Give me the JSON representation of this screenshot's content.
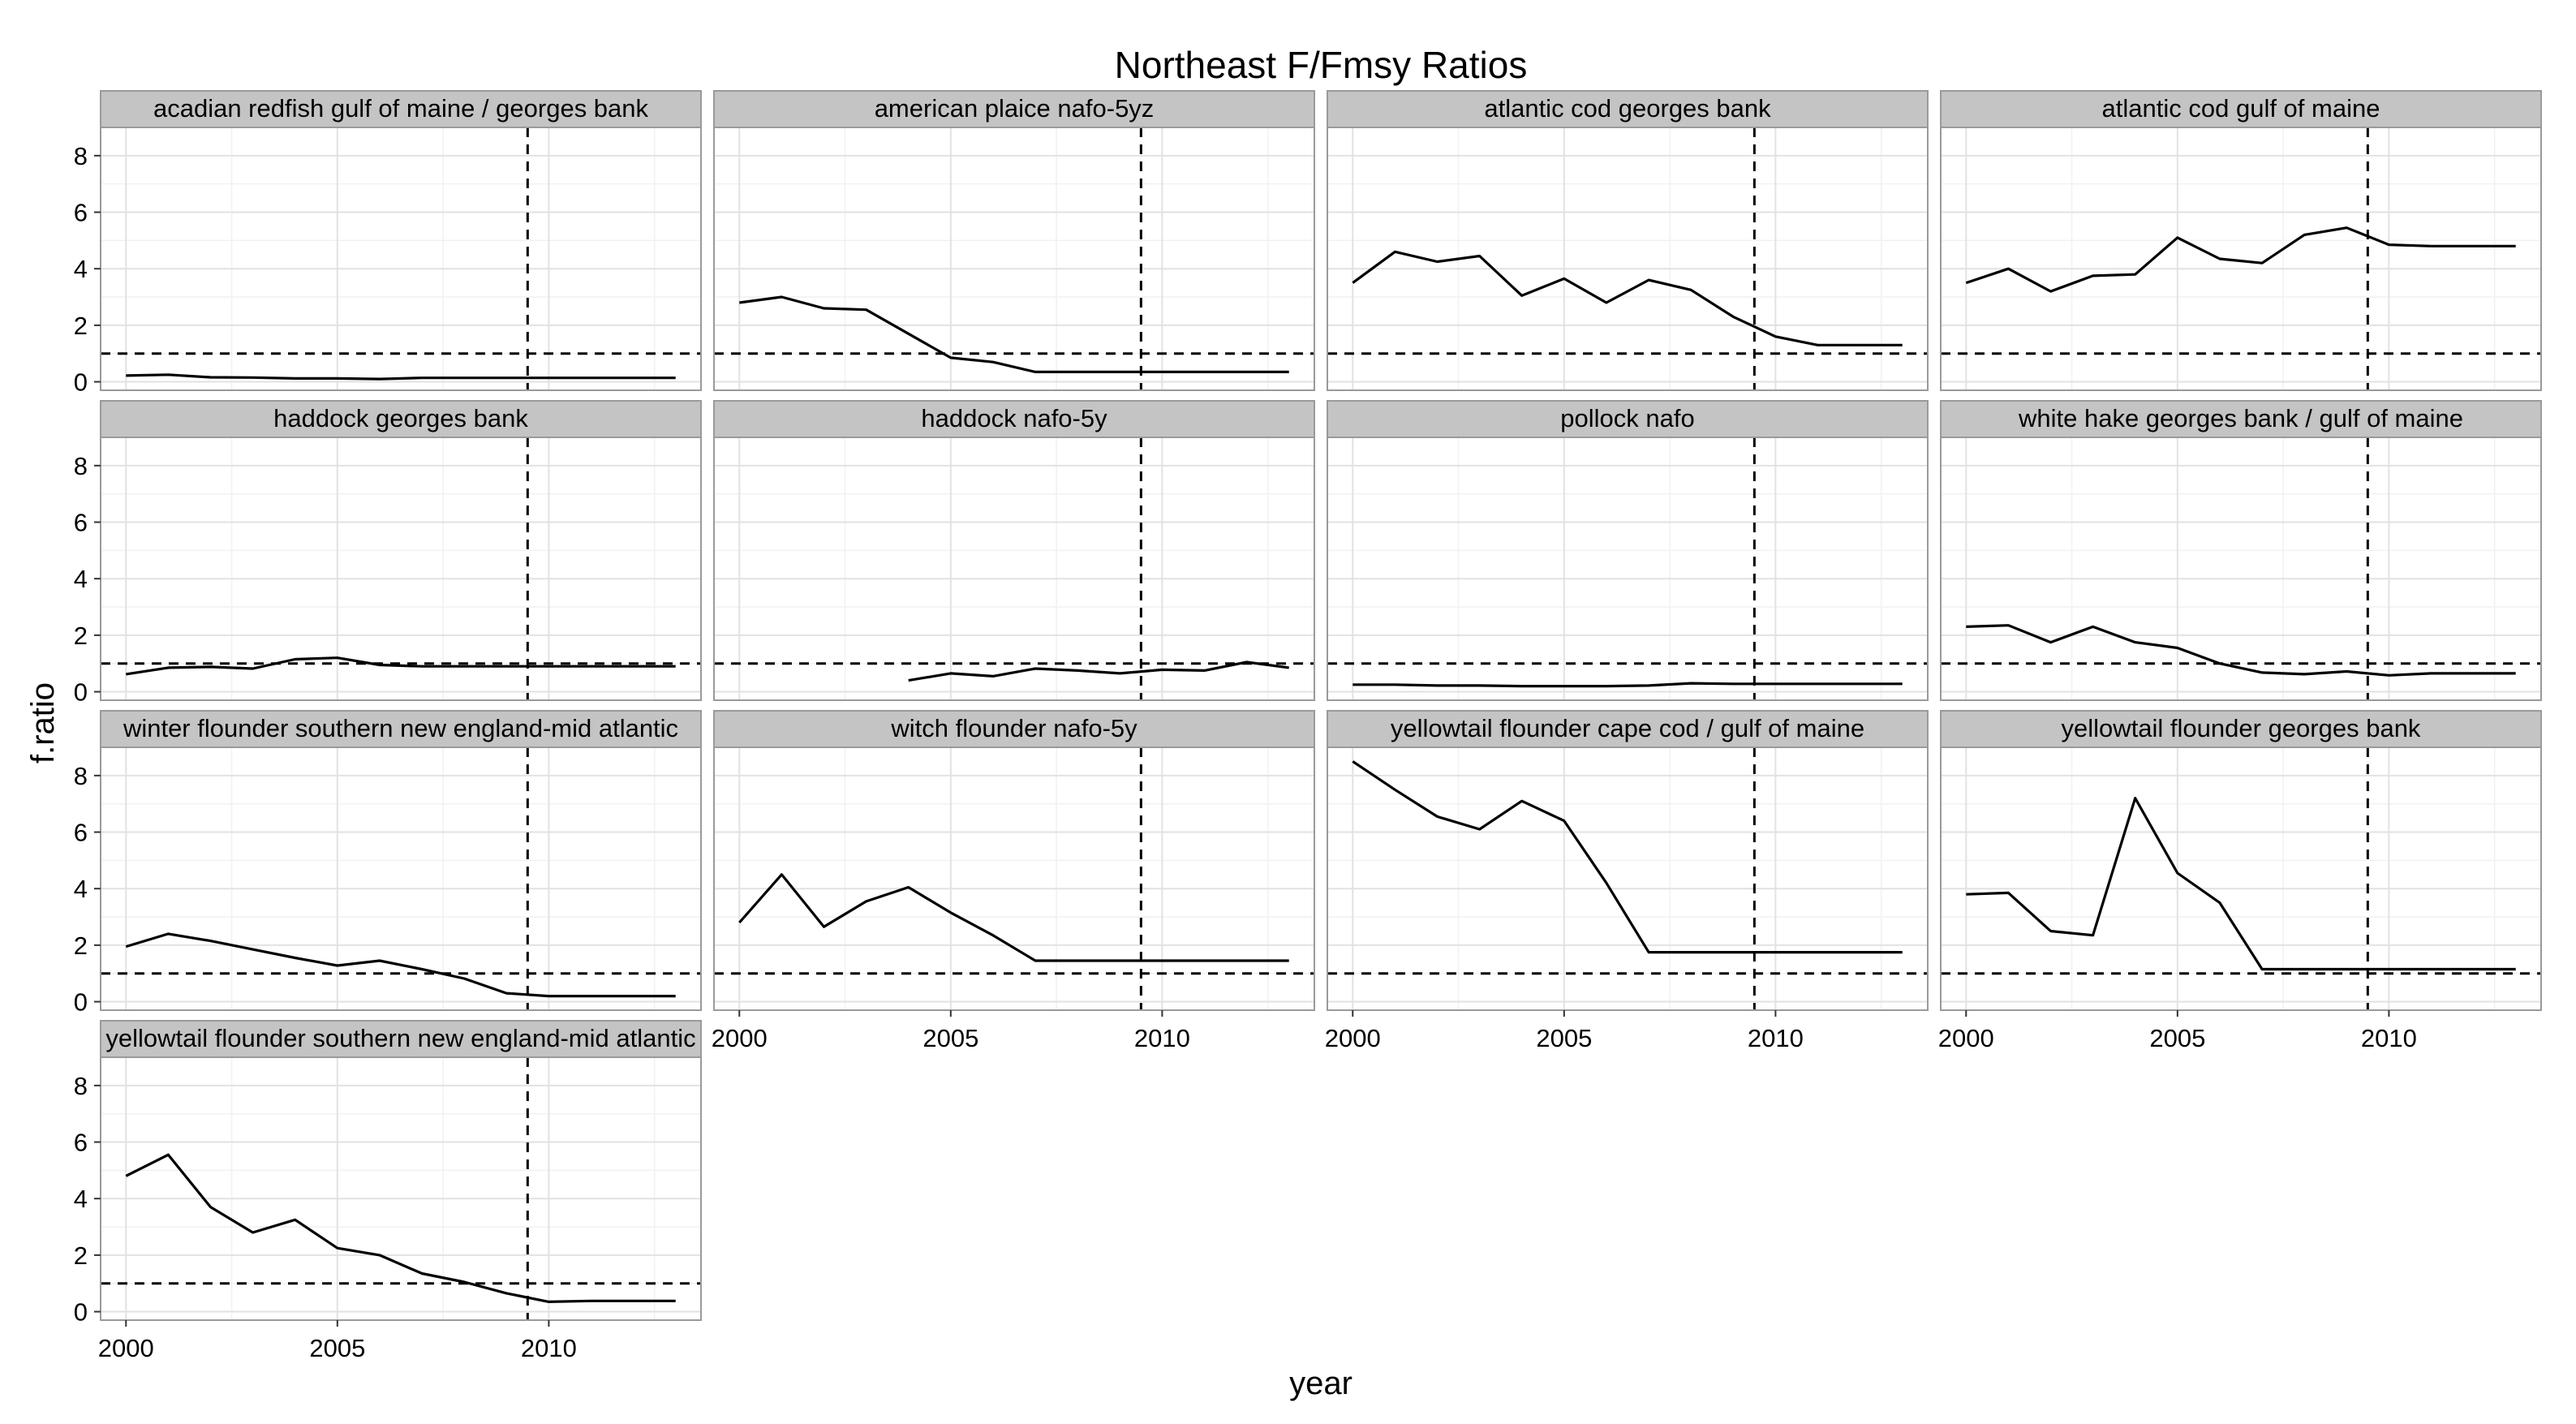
{
  "chart_data": {
    "type": "line",
    "title": "Northeast F/Fmsy Ratios",
    "xlabel": "year",
    "ylabel": "f.ratio",
    "xlim": [
      1999.4,
      2013.6
    ],
    "ylim": [
      -0.3,
      9.0
    ],
    "x_ticks": [
      2000,
      2005,
      2010
    ],
    "x_tick_labels": [
      "2000",
      "2005",
      "2010"
    ],
    "y_ticks": [
      0,
      2,
      4,
      6,
      8
    ],
    "y_tick_labels": [
      "0",
      "2",
      "4",
      "6",
      "8"
    ],
    "grid": true,
    "reference_lines": {
      "horizontal_y": 1,
      "vertical_x": 2009.5,
      "style": "dashed"
    },
    "panels": [
      {
        "title": "acadian redfish gulf of maine / georges bank",
        "x": [
          2000,
          2001,
          2002,
          2003,
          2004,
          2005,
          2006,
          2007,
          2008,
          2009,
          2010,
          2011,
          2012,
          2013
        ],
        "y": [
          0.22,
          0.25,
          0.16,
          0.15,
          0.12,
          0.12,
          0.1,
          0.14,
          0.14,
          0.14,
          0.14,
          0.14,
          0.14,
          0.14
        ]
      },
      {
        "title": "american plaice nafo-5yz",
        "x": [
          2000,
          2001,
          2002,
          2003,
          2004,
          2005,
          2006,
          2007,
          2008,
          2009,
          2010,
          2011,
          2012,
          2013
        ],
        "y": [
          2.8,
          3.0,
          2.6,
          2.55,
          1.7,
          0.85,
          0.7,
          0.35,
          0.35,
          0.35,
          0.35,
          0.35,
          0.35,
          0.35
        ]
      },
      {
        "title": "atlantic cod georges bank",
        "x": [
          2000,
          2001,
          2002,
          2003,
          2004,
          2005,
          2006,
          2007,
          2008,
          2009,
          2010,
          2011,
          2012,
          2013
        ],
        "y": [
          3.5,
          4.6,
          4.25,
          4.45,
          3.05,
          3.65,
          2.8,
          3.6,
          3.25,
          2.3,
          1.6,
          1.3,
          1.3,
          1.3
        ]
      },
      {
        "title": "atlantic cod gulf of maine",
        "x": [
          2000,
          2001,
          2002,
          2003,
          2004,
          2005,
          2006,
          2007,
          2008,
          2009,
          2010,
          2011,
          2012,
          2013
        ],
        "y": [
          3.5,
          4.0,
          3.2,
          3.75,
          3.8,
          5.1,
          4.35,
          4.2,
          5.2,
          5.45,
          4.85,
          4.8,
          4.8,
          4.8
        ]
      },
      {
        "title": "haddock georges bank",
        "x": [
          2000,
          2001,
          2002,
          2003,
          2004,
          2005,
          2006,
          2007,
          2008,
          2009,
          2010,
          2011,
          2012,
          2013
        ],
        "y": [
          0.62,
          0.85,
          0.88,
          0.82,
          1.15,
          1.2,
          0.95,
          0.9,
          0.9,
          0.9,
          0.9,
          0.9,
          0.9,
          0.9
        ]
      },
      {
        "title": "haddock nafo-5y",
        "x": [
          2004,
          2005,
          2006,
          2007,
          2008,
          2009,
          2010,
          2011,
          2012,
          2013
        ],
        "y": [
          0.4,
          0.65,
          0.55,
          0.82,
          0.75,
          0.65,
          0.78,
          0.75,
          1.05,
          0.85
        ]
      },
      {
        "title": "pollock nafo",
        "x": [
          2000,
          2001,
          2002,
          2003,
          2004,
          2005,
          2006,
          2007,
          2008,
          2009,
          2010,
          2011,
          2012,
          2013
        ],
        "y": [
          0.25,
          0.25,
          0.22,
          0.22,
          0.2,
          0.2,
          0.2,
          0.22,
          0.3,
          0.28,
          0.28,
          0.28,
          0.28,
          0.28
        ]
      },
      {
        "title": "white hake georges bank / gulf of maine",
        "x": [
          2000,
          2001,
          2002,
          2003,
          2004,
          2005,
          2006,
          2007,
          2008,
          2009,
          2010,
          2011,
          2012,
          2013
        ],
        "y": [
          2.3,
          2.35,
          1.75,
          2.3,
          1.75,
          1.55,
          1.0,
          0.68,
          0.62,
          0.72,
          0.58,
          0.65,
          0.65,
          0.65
        ]
      },
      {
        "title": "winter flounder southern new england-mid atlantic",
        "x": [
          2000,
          2001,
          2002,
          2003,
          2004,
          2005,
          2006,
          2007,
          2008,
          2009,
          2010,
          2011,
          2012,
          2013
        ],
        "y": [
          1.95,
          2.4,
          2.15,
          1.85,
          1.55,
          1.28,
          1.45,
          1.15,
          0.82,
          0.3,
          0.2,
          0.2,
          0.2,
          0.2
        ]
      },
      {
        "title": "witch flounder nafo-5y",
        "x": [
          2000,
          2001,
          2002,
          2003,
          2004,
          2005,
          2006,
          2007,
          2008,
          2009,
          2010,
          2011,
          2012,
          2013
        ],
        "y": [
          2.8,
          4.5,
          2.65,
          3.55,
          4.05,
          3.15,
          2.35,
          1.45,
          1.45,
          1.45,
          1.45,
          1.45,
          1.45,
          1.45
        ]
      },
      {
        "title": "yellowtail flounder cape cod / gulf of maine",
        "x": [
          2000,
          2001,
          2002,
          2003,
          2004,
          2005,
          2006,
          2007,
          2008,
          2009,
          2010,
          2011,
          2012,
          2013
        ],
        "y": [
          8.5,
          7.5,
          6.55,
          6.1,
          7.1,
          6.4,
          4.2,
          1.75,
          1.75,
          1.75,
          1.75,
          1.75,
          1.75,
          1.75
        ]
      },
      {
        "title": "yellowtail flounder georges bank",
        "x": [
          2000,
          2001,
          2002,
          2003,
          2004,
          2005,
          2006,
          2007,
          2008,
          2009,
          2010,
          2011,
          2012,
          2013
        ],
        "y": [
          3.8,
          3.85,
          2.5,
          2.35,
          7.2,
          4.55,
          3.5,
          1.15,
          1.15,
          1.15,
          1.15,
          1.15,
          1.15,
          1.15
        ]
      },
      {
        "title": "yellowtail flounder southern new england-mid atlantic",
        "x": [
          2000,
          2001,
          2002,
          2003,
          2004,
          2005,
          2006,
          2007,
          2008,
          2009,
          2010,
          2011,
          2012,
          2013
        ],
        "y": [
          4.8,
          5.55,
          3.7,
          2.8,
          3.25,
          2.25,
          2.0,
          1.35,
          1.05,
          0.65,
          0.35,
          0.38,
          0.38,
          0.38
        ]
      }
    ],
    "colors": {
      "panel_bg": "#ffffff",
      "panel_border": "#9a9a9a",
      "strip_bg": "#c4c4c4",
      "grid_major": "#e2e2e2",
      "grid_minor": "#f1f1f1",
      "line": "#000000",
      "ref_line": "#000000",
      "text": "#000000"
    }
  }
}
